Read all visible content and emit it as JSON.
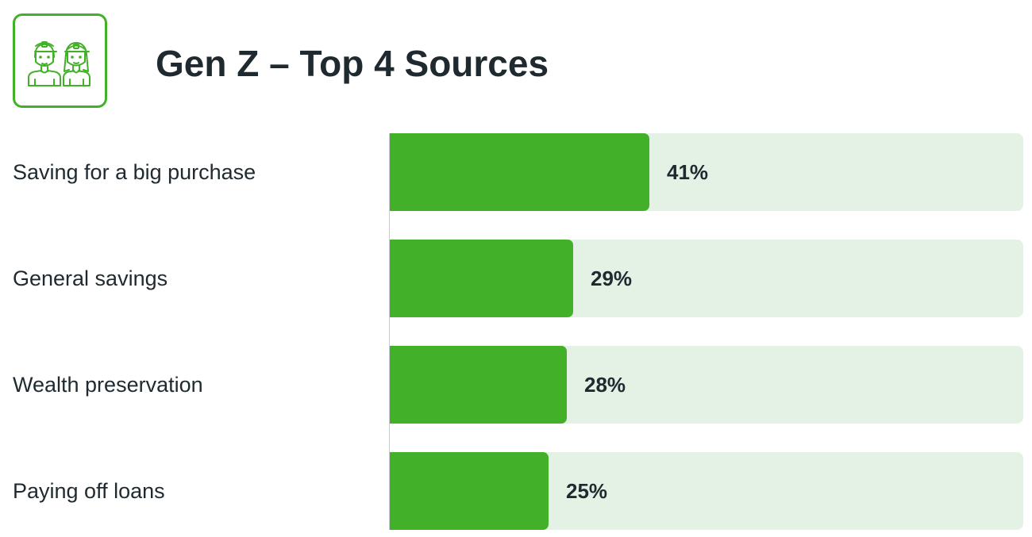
{
  "header": {
    "title": "Gen Z – Top 4 Sources",
    "icon": "gen-z-people-icon"
  },
  "colors": {
    "bar": "#43b02a",
    "track": "#e4f2e5",
    "text": "#1f2a30"
  },
  "chart_data": {
    "type": "bar",
    "orientation": "horizontal",
    "title": "Gen Z – Top 4 Sources",
    "categories": [
      "Saving for a big purchase",
      "General savings",
      "Wealth preservation",
      "Paying off loans"
    ],
    "values": [
      41,
      29,
      28,
      25
    ],
    "value_labels": [
      "41%",
      "29%",
      "28%",
      "25%"
    ],
    "xlim": [
      0,
      100
    ],
    "grid": false,
    "legend": "none"
  }
}
